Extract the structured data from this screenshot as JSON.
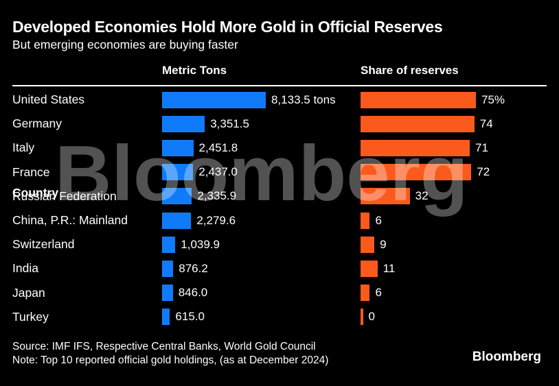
{
  "header": {
    "title": "Developed Economies Hold More Gold in Official Reserves",
    "subtitle": "But emerging economies are buying faster"
  },
  "columns": {
    "country": "Country",
    "metric_tons": "Metric Tons",
    "share": "Share of reserves"
  },
  "chart_data": {
    "type": "bar",
    "orientation": "horizontal",
    "categories": [
      "United States",
      "Germany",
      "Italy",
      "France",
      "Russian Federation",
      "China, P.R.: Mainland",
      "Switzerland",
      "India",
      "Japan",
      "Turkey"
    ],
    "series": [
      {
        "name": "Metric Tons",
        "values": [
          8133.5,
          3351.5,
          2451.8,
          2437.0,
          2335.9,
          2279.6,
          1039.9,
          876.2,
          846.0,
          615.0
        ],
        "labels": [
          "8,133.5 tons",
          "3,351.5",
          "2,451.8",
          "2,437.0",
          "2,335.9",
          "2,279.6",
          "1,039.9",
          "876.2",
          "846.0",
          "615.0"
        ],
        "axis_max": 8133.5,
        "color": "#0f7bfa"
      },
      {
        "name": "Share of reserves",
        "values": [
          75,
          74,
          71,
          72,
          32,
          6,
          9,
          11,
          6,
          0
        ],
        "labels": [
          "75%",
          "74",
          "71",
          "72",
          "32",
          "6",
          "9",
          "11",
          "6",
          "0"
        ],
        "axis_max": 75,
        "color": "#fb5a1d"
      }
    ],
    "title": "Developed Economies Hold More Gold in Official Reserves",
    "subtitle": "But emerging economies are buying faster",
    "grid": false,
    "legend": "none"
  },
  "footer": {
    "source": "Source: IMF IFS, Respective Central Banks, World Gold Council",
    "note": "Note: Top 10 reported official gold holdings, (as at December 2024)",
    "logo": "Bloomberg"
  },
  "watermark": "Bloomberg",
  "colors": {
    "background": "#000000",
    "bar_blue": "#0f7bfa",
    "bar_orange": "#fb5a1d",
    "text": "#ffffff",
    "watermark": "rgba(255,255,255,0.32)"
  }
}
